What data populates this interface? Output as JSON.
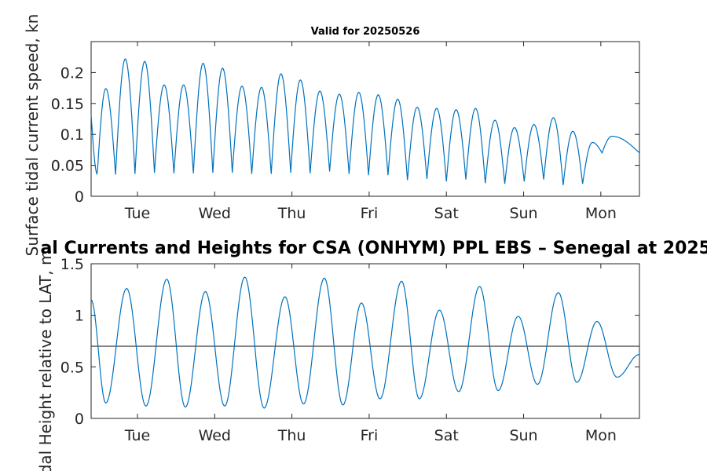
{
  "chart_data": [
    {
      "type": "line",
      "title": "Valid for 20250526",
      "ylabel": "Surface tidal current speed, kn",
      "xlabel": "",
      "x_unit": "days since plot start (Mon 00:00)",
      "xlim": [
        0.55,
        7.65
      ],
      "ylim": [
        0,
        0.25
      ],
      "yticks": [
        0,
        0.05,
        0.1,
        0.15,
        0.2
      ],
      "ytick_labels": [
        "0",
        "0.05",
        "0.1",
        "0.15",
        "0.2"
      ],
      "xticks": [
        1.15,
        2.15,
        3.15,
        4.15,
        5.15,
        6.15,
        7.15
      ],
      "xtick_labels": [
        "Tue",
        "Wed",
        "Thu",
        "Fri",
        "Sat",
        "Sun",
        "Mon"
      ],
      "grid": false,
      "series": [
        {
          "name": "",
          "color": "#0072BD",
          "first_peak_x": 0.74,
          "peak_spacing": 0.252,
          "peaks": [
            0.174,
            0.222,
            0.218,
            0.18,
            0.18,
            0.215,
            0.207,
            0.178,
            0.176,
            0.198,
            0.188,
            0.17,
            0.165,
            0.168,
            0.164,
            0.157,
            0.144,
            0.142,
            0.14,
            0.142,
            0.123,
            0.111,
            0.116,
            0.127,
            0.105,
            0.087,
            0.097
          ],
          "troughs": [
            0.132,
            0.036,
            0.035,
            0.036,
            0.038,
            0.037,
            0.037,
            0.038,
            0.038,
            0.036,
            0.036,
            0.038,
            0.037,
            0.04,
            0.036,
            0.034,
            0.034,
            0.026,
            0.028,
            0.024,
            0.027,
            0.021,
            0.02,
            0.024,
            0.027,
            0.018,
            0.02,
            0.07
          ]
        }
      ]
    },
    {
      "type": "line",
      "title": "al Currents and Heights for CSA (ONHYM) PPL EBS  – Senegal at 2025",
      "ylabel": "Tidal Height relative to LAT, m",
      "xlabel": "",
      "x_unit": "days since plot start (Mon 00:00)",
      "xlim": [
        0.55,
        7.65
      ],
      "ylim": [
        0,
        1.5
      ],
      "yticks": [
        0,
        0.5,
        1,
        1.5
      ],
      "ytick_labels": [
        "0",
        "0.5",
        "1",
        "1.5"
      ],
      "xticks": [
        1.15,
        2.15,
        3.15,
        4.15,
        5.15,
        6.15,
        7.15
      ],
      "xtick_labels": [
        "Tue",
        "Wed",
        "Thu",
        "Fri",
        "Sat",
        "Sun",
        "Mon"
      ],
      "grid": false,
      "reference_line": {
        "y": 0.7,
        "color": "#333333"
      },
      "series": [
        {
          "name": "",
          "color": "#0072BD",
          "points": [
            [
              0.55,
              1.15
            ],
            [
              0.74,
              0.15
            ],
            [
              1.01,
              1.26
            ],
            [
              1.26,
              0.12
            ],
            [
              1.53,
              1.35
            ],
            [
              1.77,
              0.11
            ],
            [
              2.03,
              1.23
            ],
            [
              2.28,
              0.12
            ],
            [
              2.54,
              1.37
            ],
            [
              2.79,
              0.1
            ],
            [
              3.06,
              1.18
            ],
            [
              3.3,
              0.14
            ],
            [
              3.57,
              1.36
            ],
            [
              3.81,
              0.13
            ],
            [
              4.05,
              1.12
            ],
            [
              4.29,
              0.19
            ],
            [
              4.57,
              1.33
            ],
            [
              4.8,
              0.19
            ],
            [
              5.06,
              1.05
            ],
            [
              5.31,
              0.26
            ],
            [
              5.58,
              1.28
            ],
            [
              5.82,
              0.27
            ],
            [
              6.08,
              0.99
            ],
            [
              6.33,
              0.33
            ],
            [
              6.6,
              1.22
            ],
            [
              6.84,
              0.35
            ],
            [
              7.1,
              0.94
            ],
            [
              7.36,
              0.4
            ],
            [
              7.65,
              0.62
            ]
          ]
        }
      ]
    }
  ]
}
